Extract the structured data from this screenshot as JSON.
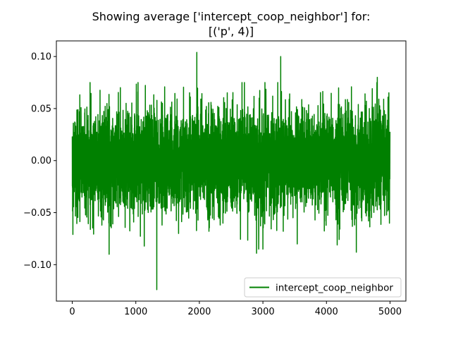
{
  "chart_data": {
    "type": "line",
    "title_line1": "Showing average ['intercept_coop_neighbor'] for:",
    "title_line2": "[('p', 4)]",
    "xlabel": "",
    "ylabel": "",
    "xlim": [
      -250,
      5250
    ],
    "ylim": [
      -0.135,
      0.115
    ],
    "x_ticks": [
      0,
      1000,
      2000,
      3000,
      4000,
      5000
    ],
    "x_tick_labels": [
      "0",
      "1000",
      "2000",
      "3000",
      "4000",
      "5000"
    ],
    "y_ticks": [
      0.1,
      0.05,
      0.0,
      -0.05,
      -0.1
    ],
    "y_tick_labels": [
      "0.10",
      "0.05",
      "0.00",
      "−0.05",
      "−0.10"
    ],
    "grid": false,
    "legend_position": "lower-right",
    "series": [
      {
        "name": "intercept_coop_neighbor",
        "color": "#008000",
        "n_points": 5000,
        "mean": 0.0,
        "std": 0.025,
        "extremes": [
          {
            "x": 10,
            "y": 0.066
          },
          {
            "x": 10,
            "y": -0.071
          },
          {
            "x": 580,
            "y": -0.09
          },
          {
            "x": 1330,
            "y": -0.124
          },
          {
            "x": 1960,
            "y": 0.104
          },
          {
            "x": 2900,
            "y": -0.089
          },
          {
            "x": 3280,
            "y": 0.1
          },
          {
            "x": 4470,
            "y": -0.088
          },
          {
            "x": 4800,
            "y": 0.08
          }
        ]
      }
    ]
  }
}
